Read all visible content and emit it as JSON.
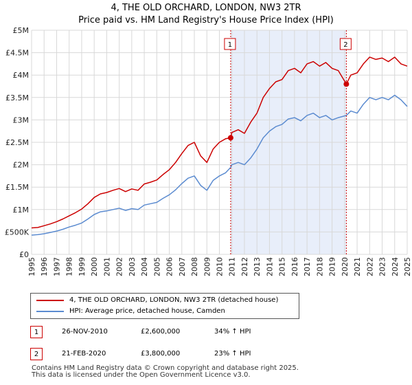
{
  "title_line1": "4, THE OLD ORCHARD, LONDON, NW3 2TR",
  "title_line2": "Price paid vs. HM Land Registry's House Price Index (HPI)",
  "chart_data": {
    "type": "line",
    "xlim": [
      1995,
      2025
    ],
    "ylim": [
      0,
      5000000
    ],
    "y_ticks": [
      0,
      500000,
      1000000,
      1500000,
      2000000,
      2500000,
      3000000,
      3500000,
      4000000,
      4500000,
      5000000
    ],
    "y_tick_labels": [
      "£0",
      "£500K",
      "£1M",
      "£1.5M",
      "£2M",
      "£2.5M",
      "£3M",
      "£3.5M",
      "£4M",
      "£4.5M",
      "£5M"
    ],
    "x_ticks": [
      1995,
      1996,
      1997,
      1998,
      1999,
      2000,
      2001,
      2002,
      2003,
      2004,
      2005,
      2006,
      2007,
      2008,
      2009,
      2010,
      2011,
      2012,
      2013,
      2014,
      2015,
      2016,
      2017,
      2018,
      2019,
      2020,
      2021,
      2022,
      2023,
      2024,
      2025
    ],
    "x_tick_labels": [
      "1995",
      "1996",
      "1997",
      "1998",
      "1999",
      "2000",
      "2001",
      "2002",
      "2003",
      "2004",
      "2005",
      "2006",
      "2007",
      "2008",
      "2009",
      "2010",
      "2011",
      "2012",
      "2013",
      "2014",
      "2015",
      "2016",
      "2017",
      "2018",
      "2019",
      "2020",
      "2021",
      "2022",
      "2023",
      "2024",
      "2025"
    ],
    "grid": true,
    "shaded_region": [
      2010.9,
      2020.14
    ],
    "series": [
      {
        "name": "4, THE OLD ORCHARD, LONDON, NW3 2TR (detached house)",
        "color": "#cc0000",
        "x": [
          1995,
          1995.5,
          1996,
          1996.5,
          1997,
          1997.5,
          1998,
          1998.5,
          1999,
          1999.5,
          2000,
          2000.5,
          2001,
          2001.5,
          2002,
          2002.5,
          2003,
          2003.5,
          2004,
          2004.5,
          2005,
          2005.5,
          2006,
          2006.5,
          2007,
          2007.5,
          2008,
          2008.5,
          2009,
          2009.5,
          2010,
          2010.5,
          2010.9,
          2011,
          2011.5,
          2012,
          2012.5,
          2013,
          2013.5,
          2014,
          2014.5,
          2015,
          2015.5,
          2016,
          2016.5,
          2017,
          2017.5,
          2018,
          2018.5,
          2019,
          2019.5,
          2020.14,
          2020.5,
          2021,
          2021.5,
          2022,
          2022.5,
          2023,
          2023.5,
          2024,
          2024.5,
          2025
        ],
        "y": [
          590000,
          600000,
          640000,
          680000,
          730000,
          790000,
          860000,
          930000,
          1010000,
          1130000,
          1270000,
          1350000,
          1380000,
          1430000,
          1470000,
          1400000,
          1460000,
          1430000,
          1570000,
          1610000,
          1660000,
          1780000,
          1890000,
          2050000,
          2250000,
          2430000,
          2500000,
          2200000,
          2050000,
          2350000,
          2500000,
          2580000,
          2600000,
          2720000,
          2780000,
          2700000,
          2950000,
          3150000,
          3500000,
          3700000,
          3850000,
          3900000,
          4100000,
          4150000,
          4050000,
          4250000,
          4300000,
          4200000,
          4280000,
          4150000,
          4100000,
          3800000,
          4000000,
          4050000,
          4250000,
          4400000,
          4350000,
          4380000,
          4300000,
          4400000,
          4250000,
          4200000
        ]
      },
      {
        "name": "HPI: Average price, detached house, Camden",
        "color": "#5b8bd0",
        "x": [
          1995,
          1995.5,
          1996,
          1996.5,
          1997,
          1997.5,
          1998,
          1998.5,
          1999,
          1999.5,
          2000,
          2000.5,
          2001,
          2001.5,
          2002,
          2002.5,
          2003,
          2003.5,
          2004,
          2004.5,
          2005,
          2005.5,
          2006,
          2006.5,
          2007,
          2007.5,
          2008,
          2008.5,
          2009,
          2009.5,
          2010,
          2010.5,
          2010.9,
          2011,
          2011.5,
          2012,
          2012.5,
          2013,
          2013.5,
          2014,
          2014.5,
          2015,
          2015.5,
          2016,
          2016.5,
          2017,
          2017.5,
          2018,
          2018.5,
          2019,
          2019.5,
          2020.14,
          2020.5,
          2021,
          2021.5,
          2022,
          2022.5,
          2023,
          2023.5,
          2024,
          2024.5,
          2025
        ],
        "y": [
          430000,
          440000,
          460000,
          490000,
          520000,
          560000,
          610000,
          650000,
          700000,
          790000,
          890000,
          950000,
          970000,
          1000000,
          1030000,
          980000,
          1020000,
          1000000,
          1100000,
          1130000,
          1160000,
          1250000,
          1330000,
          1440000,
          1580000,
          1700000,
          1750000,
          1540000,
          1430000,
          1650000,
          1750000,
          1820000,
          1940000,
          2000000,
          2050000,
          2000000,
          2150000,
          2350000,
          2600000,
          2750000,
          2850000,
          2900000,
          3020000,
          3050000,
          2980000,
          3100000,
          3150000,
          3050000,
          3100000,
          3000000,
          3050000,
          3100000,
          3200000,
          3150000,
          3350000,
          3500000,
          3450000,
          3500000,
          3450000,
          3550000,
          3450000,
          3300000
        ]
      }
    ],
    "annotations": [
      {
        "label": "1",
        "x": 2010.9,
        "y": 2600000
      },
      {
        "label": "2",
        "x": 2020.14,
        "y": 3800000
      }
    ]
  },
  "legend": {
    "items": [
      {
        "label": "4, THE OLD ORCHARD, LONDON, NW3 2TR (detached house)",
        "color": "#cc0000"
      },
      {
        "label": "HPI: Average price, detached house, Camden",
        "color": "#5b8bd0"
      }
    ]
  },
  "transactions": [
    {
      "num": "1",
      "date": "26-NOV-2010",
      "price": "£2,600,000",
      "hpi": "34% ↑ HPI"
    },
    {
      "num": "2",
      "date": "21-FEB-2020",
      "price": "£3,800,000",
      "hpi": "23% ↑ HPI"
    }
  ],
  "footer_line1": "Contains HM Land Registry data © Crown copyright and database right 2025.",
  "footer_line2": "This data is licensed under the Open Government Licence v3.0."
}
